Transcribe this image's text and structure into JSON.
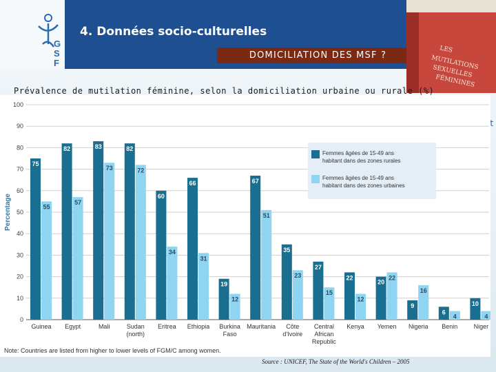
{
  "header": {
    "title": "4. Données socio-culturelles",
    "subtitle": "DOMICILIATION DES  MSF  ?",
    "logo_letters": [
      "G",
      "S",
      "F"
    ],
    "book_text": [
      "LES",
      "MUTILATIONS",
      "SEXUELLES",
      "FÉMININES"
    ]
  },
  "heading": "Prévalence de mutilation féminine, selon la domiciliation urbaine ou rurale (%)",
  "stray_text": "ot",
  "source": "Source : UNICEF, The State of the World's Children – 2005",
  "colors": {
    "rural": "#1a6e8f",
    "urban": "#8fd4f0",
    "band": "#1e4f91",
    "subtitle_bg": "#7a2a12"
  },
  "chart_data": {
    "type": "bar",
    "ylabel": "Percentage",
    "ylim": [
      0,
      100
    ],
    "yticks": [
      "0",
      "10",
      "20",
      "30",
      "40",
      "50",
      "60",
      "70",
      "80",
      "90",
      "100"
    ],
    "categories": [
      "Guinea",
      "Egypt",
      "Mali",
      "Sudan (north)",
      "Eritrea",
      "Ethiopia",
      "Burkina Faso",
      "Mauritania",
      "Côte d'Ivoire",
      "Central African Republic",
      "Kenya",
      "Yemen",
      "Nigeria",
      "Benin",
      "Niger"
    ],
    "category_lines": [
      [
        "Guinea"
      ],
      [
        "Egypt"
      ],
      [
        "Mali"
      ],
      [
        "Sudan",
        "(north)"
      ],
      [
        "Eritrea"
      ],
      [
        "Ethiopia"
      ],
      [
        "Burkina",
        "Faso"
      ],
      [
        "Mauritania"
      ],
      [
        "Côte",
        "d'Ivoire"
      ],
      [
        "Central",
        "African",
        "Republic"
      ],
      [
        "Kenya"
      ],
      [
        "Yemen"
      ],
      [
        "Nigeria"
      ],
      [
        "Benin"
      ],
      [
        "Niger"
      ]
    ],
    "series": [
      {
        "name": "Femmes âgées de 15-49 ans habitant dans des zones rurales",
        "legend_lines": [
          "Femmes âgées de 15-49 ans",
          "habitant dans des zones rurales"
        ],
        "values": [
          75,
          82,
          83,
          82,
          60,
          66,
          19,
          67,
          35,
          27,
          22,
          20,
          9,
          6,
          10
        ]
      },
      {
        "name": "Femmes âgées de 15-49 ans habitant dans des zones urbaines",
        "legend_lines": [
          "Femmes âgées de 15-49 ans",
          "habitant dans des zones urbaines"
        ],
        "values": [
          55,
          57,
          73,
          72,
          34,
          31,
          12,
          51,
          23,
          15,
          12,
          22,
          16,
          4,
          4
        ]
      }
    ],
    "note": "Note: Countries are listed from higher to lower levels of FGM/C among women.",
    "legend_position": "top-right"
  }
}
